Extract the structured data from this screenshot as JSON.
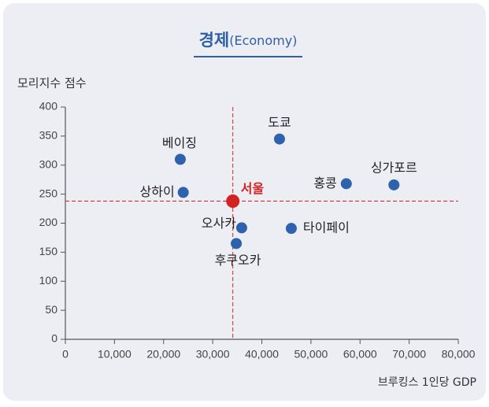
{
  "chart_data": {
    "type": "scatter",
    "title": "경제",
    "subtitle": "(Economy)",
    "y_label": "모리지수 점수",
    "x_label": "브루킹스 1인당 GDP",
    "xlim": [
      0,
      80000
    ],
    "xticks": [
      0,
      {
        "value": 10000,
        "label": "10,000"
      },
      {
        "value": 20000,
        "label": "20,000"
      },
      {
        "value": 30000,
        "label": "30,000"
      },
      {
        "value": 40000,
        "label": "40,000"
      },
      {
        "value": 50000,
        "label": "50,000"
      },
      {
        "value": 60000,
        "label": "60,000"
      },
      {
        "value": 70000,
        "label": "70,000"
      },
      {
        "value": 80000,
        "label": "80,000"
      }
    ],
    "ylim": [
      0,
      400
    ],
    "yticks": [
      0,
      50,
      100,
      150,
      200,
      250,
      300,
      350,
      400
    ],
    "series": [
      {
        "color": "#2f62ad",
        "labels": [
          "도쿄",
          "베이징",
          "상하이",
          "홍콩",
          "싱가포르",
          "오사카",
          "타이페이",
          "후쿠오카"
        ],
        "x": [
          43600,
          23400,
          24000,
          57200,
          66900,
          35900,
          46000,
          34800
        ],
        "y": [
          345,
          310,
          253,
          268,
          266,
          192,
          191,
          165
        ]
      },
      {
        "color": "#d42222",
        "reference_lines": true,
        "labels": [
          "서울"
        ],
        "x": [
          34100
        ],
        "y": [
          238
        ]
      }
    ]
  }
}
